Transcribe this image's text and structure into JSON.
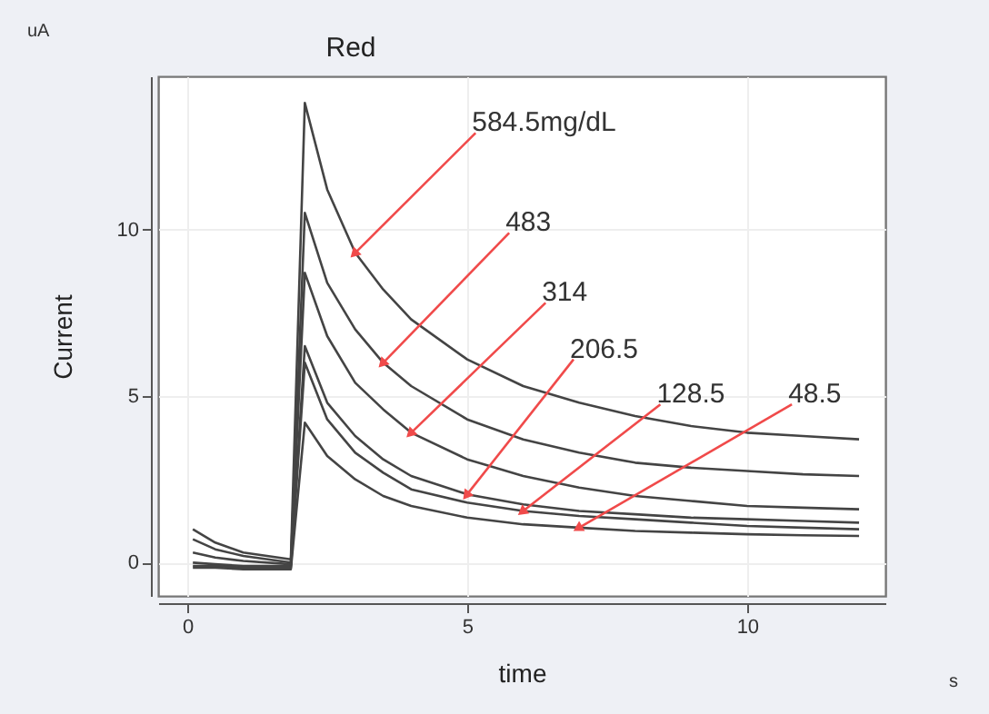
{
  "chart_data": {
    "type": "line",
    "title": "Red",
    "xlabel": "time",
    "ylabel": "Current",
    "annotations": [
      "uA",
      "s"
    ],
    "x": [
      0.1,
      0.5,
      1,
      1.85,
      2.1,
      2.5,
      3,
      3.5,
      4,
      5,
      6,
      7,
      8,
      9,
      10,
      11,
      12
    ],
    "series": [
      {
        "name": "584.5mg/dL",
        "color": "#444444",
        "values": [
          1.0,
          0.6,
          0.3,
          0.1,
          13.8,
          11.2,
          9.3,
          8.2,
          7.3,
          6.1,
          5.3,
          4.8,
          4.4,
          4.1,
          3.9,
          3.8,
          3.7
        ]
      },
      {
        "name": "483",
        "color": "#444444",
        "values": [
          0.7,
          0.4,
          0.2,
          0.0,
          10.5,
          8.4,
          7.0,
          6.0,
          5.3,
          4.3,
          3.7,
          3.3,
          3.0,
          2.85,
          2.75,
          2.65,
          2.6
        ]
      },
      {
        "name": "314",
        "color": "#444444",
        "values": [
          0.3,
          0.15,
          0.05,
          -0.05,
          8.7,
          6.8,
          5.4,
          4.6,
          3.9,
          3.1,
          2.6,
          2.25,
          2.0,
          1.85,
          1.7,
          1.65,
          1.6
        ]
      },
      {
        "name": "206.5",
        "color": "#444444",
        "values": [
          0.0,
          -0.05,
          -0.1,
          -0.1,
          6.5,
          4.8,
          3.8,
          3.1,
          2.6,
          2.05,
          1.75,
          1.55,
          1.45,
          1.35,
          1.3,
          1.25,
          1.2
        ]
      },
      {
        "name": "128.5",
        "color": "#444444",
        "values": [
          -0.1,
          -0.1,
          -0.15,
          -0.15,
          6.0,
          4.3,
          3.3,
          2.7,
          2.2,
          1.8,
          1.55,
          1.4,
          1.3,
          1.2,
          1.1,
          1.05,
          1.0
        ]
      },
      {
        "name": "48.5",
        "color": "#444444",
        "values": [
          -0.15,
          -0.15,
          -0.2,
          -0.2,
          4.2,
          3.2,
          2.5,
          2.0,
          1.7,
          1.35,
          1.15,
          1.05,
          0.95,
          0.9,
          0.85,
          0.82,
          0.8
        ]
      }
    ],
    "xlim": [
      -0.52,
      12.47
    ],
    "ylim": [
      -1,
      14.6
    ],
    "xticks": [
      0,
      5,
      10
    ],
    "yticks": [
      0,
      5,
      10
    ],
    "grid": true
  }
}
